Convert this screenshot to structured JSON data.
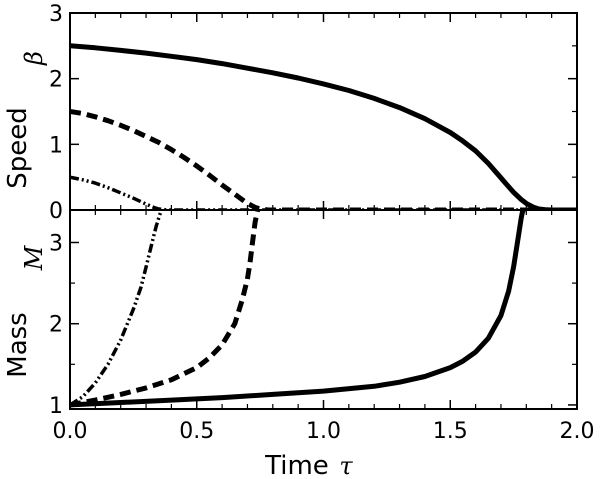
{
  "chart_data": [
    {
      "type": "line",
      "panel": "top",
      "title": "",
      "xlabel": "",
      "ylabel": "Speed",
      "ylabel_symbol": "β",
      "xlim": [
        0,
        2
      ],
      "ylim": [
        0,
        3
      ],
      "yticks": [
        0,
        1,
        2,
        3
      ],
      "yticklabels": [
        "0",
        "1",
        "2",
        "3"
      ],
      "grid": false,
      "series": [
        {
          "style": "solid",
          "color": "#000000",
          "x": [
            0,
            0.1,
            0.2,
            0.3,
            0.4,
            0.5,
            0.6,
            0.7,
            0.8,
            0.9,
            1.0,
            1.1,
            1.2,
            1.3,
            1.4,
            1.5,
            1.55,
            1.6,
            1.65,
            1.7,
            1.72,
            1.75,
            1.78,
            1.8,
            1.83,
            1.85,
            1.88,
            1.9,
            2.0
          ],
          "y": [
            2.5,
            2.47,
            2.43,
            2.39,
            2.34,
            2.29,
            2.23,
            2.16,
            2.09,
            2.01,
            1.92,
            1.82,
            1.7,
            1.56,
            1.39,
            1.18,
            1.05,
            0.9,
            0.71,
            0.49,
            0.4,
            0.27,
            0.16,
            0.1,
            0.04,
            0.015,
            0.003,
            0,
            0
          ]
        },
        {
          "style": "dashed",
          "color": "#000000",
          "x": [
            0,
            0.05,
            0.1,
            0.15,
            0.2,
            0.25,
            0.3,
            0.35,
            0.4,
            0.45,
            0.5,
            0.55,
            0.6,
            0.65,
            0.7,
            0.73,
            0.75,
            0.78,
            0.8,
            2.0
          ],
          "y": [
            1.5,
            1.47,
            1.42,
            1.36,
            1.29,
            1.21,
            1.12,
            1.03,
            0.92,
            0.8,
            0.67,
            0.53,
            0.38,
            0.24,
            0.1,
            0.04,
            0.015,
            0.002,
            0,
            0
          ]
        },
        {
          "style": "dashdot",
          "color": "#000000",
          "x": [
            0,
            0.05,
            0.1,
            0.15,
            0.2,
            0.25,
            0.3,
            0.33,
            0.35,
            0.38,
            0.4,
            2.0
          ],
          "y": [
            0.5,
            0.46,
            0.41,
            0.34,
            0.26,
            0.18,
            0.09,
            0.04,
            0.015,
            0.002,
            0,
            0
          ]
        }
      ]
    },
    {
      "type": "line",
      "panel": "bottom",
      "title": "",
      "xlabel": "Time",
      "xlabel_symbol": "τ",
      "ylabel": "Mass",
      "ylabel_symbol": "M",
      "xlim": [
        0,
        2
      ],
      "ylim": [
        0.95,
        3.4
      ],
      "xticks": [
        0,
        0.5,
        1,
        1.5,
        2
      ],
      "xticklabels": [
        "0.0",
        "0.5",
        "1.0",
        "1.5",
        "2.0"
      ],
      "yticks": [
        1,
        2,
        3
      ],
      "yticklabels": [
        "1",
        "2",
        "3"
      ],
      "grid": false,
      "series": [
        {
          "style": "solid",
          "color": "#000000",
          "x": [
            0,
            0.2,
            0.4,
            0.6,
            0.8,
            1.0,
            1.2,
            1.3,
            1.4,
            1.5,
            1.55,
            1.6,
            1.65,
            1.7,
            1.73,
            1.75,
            1.77,
            1.78,
            1.785,
            1.79
          ],
          "y": [
            1.0,
            1.03,
            1.06,
            1.09,
            1.13,
            1.17,
            1.23,
            1.28,
            1.35,
            1.46,
            1.54,
            1.65,
            1.82,
            2.1,
            2.4,
            2.7,
            3.1,
            3.3,
            3.38,
            3.4
          ]
        },
        {
          "style": "dashed",
          "color": "#000000",
          "x": [
            0,
            0.1,
            0.2,
            0.3,
            0.4,
            0.5,
            0.55,
            0.6,
            0.65,
            0.68,
            0.7,
            0.71,
            0.72,
            0.73,
            0.74
          ],
          "y": [
            1.0,
            1.06,
            1.13,
            1.21,
            1.31,
            1.46,
            1.58,
            1.74,
            2.0,
            2.3,
            2.55,
            2.75,
            3.0,
            3.25,
            3.4
          ]
        },
        {
          "style": "dashdot",
          "color": "#000000",
          "x": [
            0,
            0.05,
            0.1,
            0.15,
            0.2,
            0.25,
            0.28,
            0.3,
            0.32,
            0.33,
            0.34,
            0.35,
            0.36
          ],
          "y": [
            1.0,
            1.1,
            1.27,
            1.5,
            1.8,
            2.18,
            2.45,
            2.7,
            2.95,
            3.08,
            3.2,
            3.3,
            3.4
          ]
        }
      ]
    }
  ]
}
